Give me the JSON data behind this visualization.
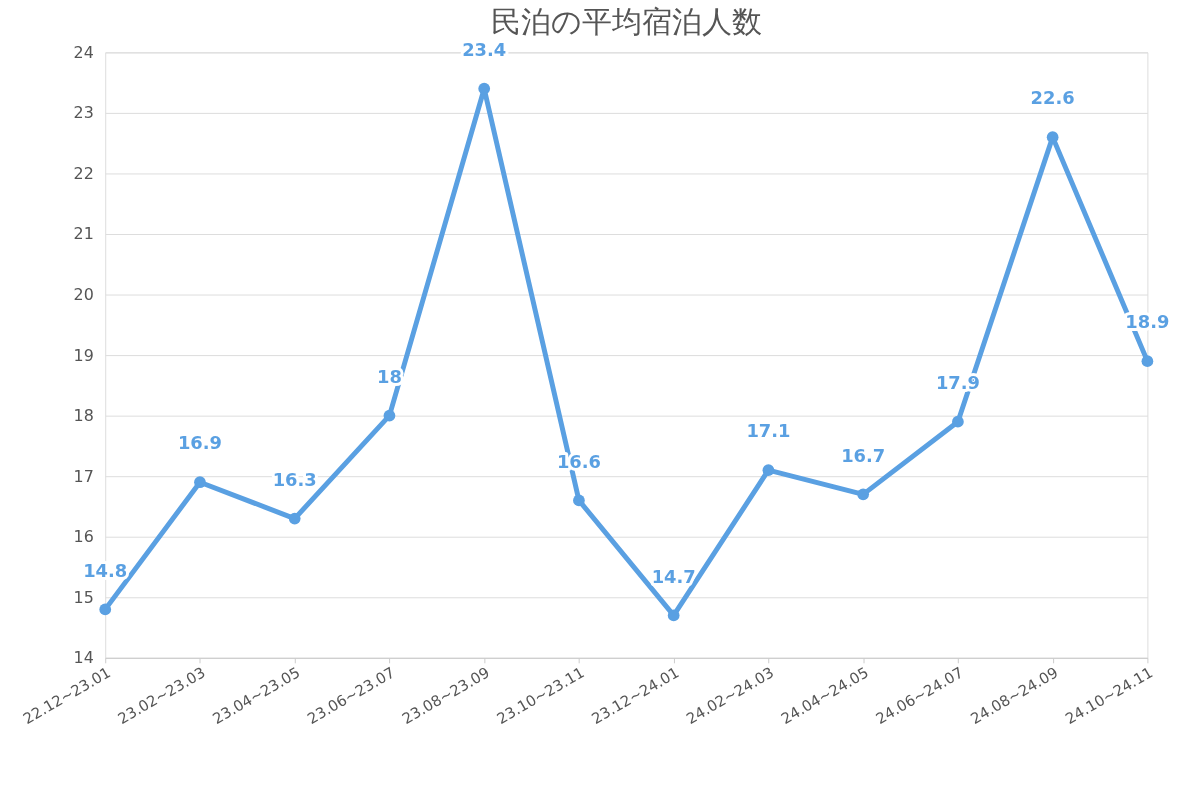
{
  "chart_data": {
    "type": "line",
    "title": "民泊の平均宿泊人数",
    "categories": [
      "22.12~23.01",
      "23.02~23.03",
      "23.04~23.05",
      "23.06~23.07",
      "23.08~23.09",
      "23.10~23.11",
      "23.12~24.01",
      "24.02~24.03",
      "24.04~24.05",
      "24.06~24.07",
      "24.08~24.09",
      "24.10~24.11"
    ],
    "series": [
      {
        "color": "#5aa0e2",
        "values": [
          14.8,
          16.9,
          16.3,
          18,
          23.4,
          16.6,
          14.7,
          17.1,
          16.7,
          17.9,
          22.6,
          18.9
        ]
      }
    ],
    "ylim": [
      14,
      24
    ],
    "yticks": [
      14,
      15,
      16,
      17,
      18,
      19,
      20,
      21,
      22,
      23,
      24
    ],
    "grid": "y",
    "marker": "circle",
    "line_style": "solid",
    "data_labels": true
  }
}
